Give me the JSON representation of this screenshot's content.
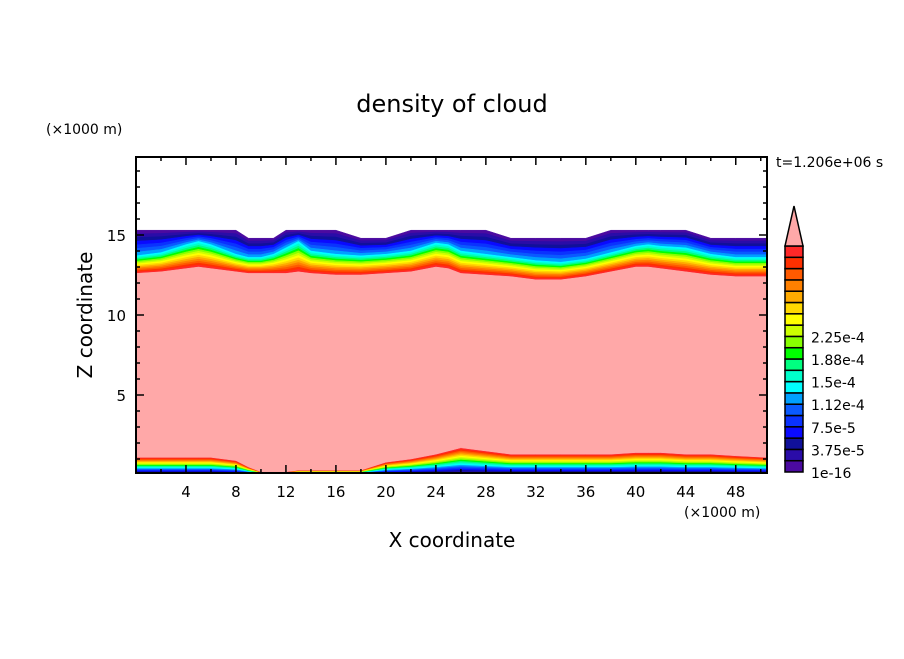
{
  "chart_data": {
    "type": "heatmap",
    "subtype": "filled-contour",
    "title": "density of cloud",
    "xlabel": "X coordinate",
    "ylabel": "Z coordinate",
    "x_unit": "(×1000 m)",
    "y_unit": "(×1000 m)",
    "time_label": "t=1.206e+06 s",
    "xlim": [
      0,
      50.5
    ],
    "ylim": [
      0,
      20
    ],
    "x_ticks": [
      4,
      8,
      12,
      16,
      20,
      24,
      28,
      32,
      36,
      40,
      44,
      48
    ],
    "y_ticks": [
      5,
      10,
      15
    ],
    "colorbar": {
      "labels": [
        "1e-16",
        "3.75e-5",
        "7.5e-5",
        "1.12e-4",
        "1.5e-4",
        "1.88e-4",
        "2.25e-4"
      ],
      "colors": [
        "#4b0aa0",
        "#2a0ca8",
        "#10109a",
        "#0a0aff",
        "#0a32ff",
        "#0a5aff",
        "#00a0ff",
        "#00ffff",
        "#00ffcc",
        "#00ff80",
        "#00ff00",
        "#88ff00",
        "#ccff00",
        "#ffff00",
        "#ffd800",
        "#ffaa00",
        "#ff8000",
        "#ff5a00",
        "#ff3000",
        "#ff2828"
      ],
      "overflow_color": "#ffa8a8"
    },
    "profile": {
      "x": [
        0,
        2,
        4,
        5,
        6,
        8,
        9,
        10,
        11,
        12,
        13,
        14,
        16,
        18,
        20,
        22,
        24,
        25,
        26,
        28,
        30,
        32,
        34,
        36,
        38,
        40,
        41,
        42,
        44,
        46,
        48,
        50.5
      ],
      "cloud_top": [
        15.3,
        15.3,
        15.3,
        15.3,
        15.3,
        15.3,
        14.8,
        14.8,
        14.8,
        15.3,
        15.3,
        15.3,
        15.3,
        14.8,
        14.8,
        15.3,
        15.3,
        15.3,
        15.3,
        15.3,
        14.8,
        14.8,
        14.8,
        14.8,
        15.3,
        15.3,
        15.3,
        15.3,
        15.3,
        14.8,
        14.8,
        14.8
      ],
      "cyan_level": [
        13.7,
        13.9,
        14.4,
        14.6,
        14.4,
        13.8,
        13.6,
        13.6,
        13.8,
        14.2,
        14.6,
        14.0,
        13.8,
        13.7,
        13.8,
        14.0,
        14.5,
        14.4,
        14.0,
        13.8,
        13.6,
        13.4,
        13.3,
        13.5,
        13.9,
        14.3,
        14.4,
        14.3,
        14.2,
        13.8,
        13.6,
        13.6
      ],
      "core_top": [
        12.6,
        12.7,
        12.9,
        13.0,
        12.9,
        12.7,
        12.6,
        12.6,
        12.6,
        12.6,
        12.7,
        12.6,
        12.5,
        12.5,
        12.6,
        12.7,
        13.0,
        12.9,
        12.6,
        12.5,
        12.4,
        12.2,
        12.2,
        12.4,
        12.7,
        13.0,
        13.0,
        12.9,
        12.7,
        12.5,
        12.4,
        12.4
      ],
      "core_bottom": [
        1.1,
        1.1,
        1.1,
        1.1,
        1.1,
        0.9,
        0.5,
        0.2,
        0.2,
        0.2,
        0.3,
        0.3,
        0.3,
        0.3,
        0.8,
        1.0,
        1.3,
        1.5,
        1.7,
        1.5,
        1.3,
        1.3,
        1.3,
        1.3,
        1.3,
        1.4,
        1.4,
        1.4,
        1.3,
        1.3,
        1.2,
        1.1
      ]
    }
  }
}
